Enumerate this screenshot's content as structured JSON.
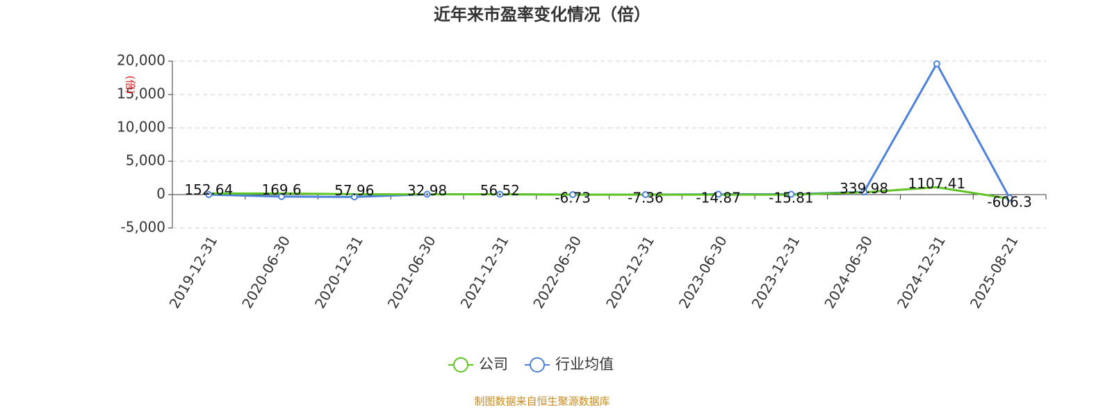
{
  "chart_data": {
    "type": "line",
    "title": "近年来市盈率变化情况（倍）",
    "y_label": "(倍)",
    "source": "制图数据来自恒生聚源数据库",
    "categories": [
      "2019-12-31",
      "2020-06-30",
      "2020-12-31",
      "2021-06-30",
      "2021-12-31",
      "2022-06-30",
      "2022-12-31",
      "2023-06-30",
      "2023-12-31",
      "2024-06-30",
      "2024-12-31",
      "2025-08-21"
    ],
    "series": [
      {
        "name": "公司",
        "color": "#5ec423",
        "values": [
          152.64,
          169.6,
          57.96,
          32.98,
          56.52,
          -6.73,
          -7.36,
          -14.87,
          -15.81,
          339.98,
          1107.41,
          -606.3
        ],
        "labels": true
      },
      {
        "name": "行业均值",
        "color": "#4d80db",
        "values": [
          0,
          -300,
          -350,
          50,
          50,
          0,
          0,
          50,
          50,
          400,
          19600,
          -500
        ],
        "labels": false
      }
    ],
    "ylim": [
      -5000,
      20000
    ],
    "yticks": [
      {
        "value": -5000,
        "label": "-5,000"
      },
      0,
      {
        "value": 5000,
        "label": "5,000"
      },
      {
        "value": 10000,
        "label": "10,000"
      },
      {
        "value": 15000,
        "label": "15,000"
      },
      {
        "value": 20000,
        "label": "20,000"
      }
    ],
    "grid": true
  }
}
